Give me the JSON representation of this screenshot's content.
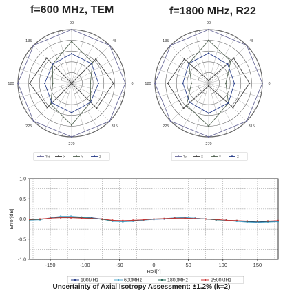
{
  "chart_data": [
    {
      "type": "polar",
      "title": "f=600 MHz, TEM",
      "angle_labels": [
        "0",
        "45",
        "90",
        "135",
        "180",
        "225",
        "270",
        "315"
      ],
      "series": [
        {
          "name": "Tot",
          "color": "#6a6a9a",
          "values": [
            1,
            1,
            1,
            1,
            1,
            1,
            1,
            1
          ]
        },
        {
          "name": "X",
          "color": "#444444",
          "values": [
            0.78,
            0.64,
            0.0,
            0.66,
            0.78,
            0.64,
            0.0,
            0.66
          ]
        },
        {
          "name": "Y",
          "color": "#556655",
          "values": [
            0.35,
            0.55,
            0.78,
            0.5,
            0.35,
            0.55,
            0.78,
            0.5
          ]
        },
        {
          "name": "Z",
          "color": "#2a3f8a",
          "values": [
            0.5,
            0.52,
            0.55,
            0.5,
            0.5,
            0.52,
            0.55,
            0.5
          ]
        }
      ],
      "legend": [
        "Tot",
        "X",
        "Y",
        "Z"
      ]
    },
    {
      "type": "polar",
      "title": "f=1800 MHz, R22",
      "angle_labels": [
        "0",
        "45",
        "90",
        "135",
        "180",
        "225",
        "270",
        "315"
      ],
      "series": [
        {
          "name": "Tot",
          "color": "#6a6a9a",
          "values": [
            1,
            1,
            1,
            1,
            1,
            1,
            1,
            1
          ]
        },
        {
          "name": "X",
          "color": "#444444",
          "values": [
            0.76,
            0.66,
            0.05,
            0.64,
            0.76,
            0.66,
            0.05,
            0.64
          ]
        },
        {
          "name": "Y",
          "color": "#556655",
          "values": [
            0.32,
            0.58,
            0.8,
            0.52,
            0.32,
            0.58,
            0.8,
            0.52
          ]
        },
        {
          "name": "Z",
          "color": "#2a3f8a",
          "values": [
            0.48,
            0.5,
            0.56,
            0.52,
            0.48,
            0.5,
            0.56,
            0.52
          ]
        }
      ],
      "legend": [
        "Tot",
        "X",
        "Y",
        "Z"
      ]
    },
    {
      "type": "line",
      "title": "Uncertainty of Axial Isotropy Assessment: ±1.2% (k=2)",
      "xlabel": "Roll[°]",
      "ylabel": "Error[dB]",
      "xlim": [
        -180,
        180
      ],
      "ylim": [
        -1.0,
        1.0
      ],
      "xticks": [
        "-150",
        "-100",
        "-50",
        "0",
        "50",
        "100",
        "150"
      ],
      "yticks": [
        "1.0",
        "0.5",
        "0.0",
        "-0.5",
        "-1.0"
      ],
      "grid": true,
      "x": [
        -180,
        -165,
        -150,
        -135,
        -120,
        -105,
        -90,
        -75,
        -60,
        -45,
        -30,
        -15,
        0,
        15,
        30,
        45,
        60,
        75,
        90,
        105,
        120,
        135,
        150,
        165,
        180
      ],
      "series": [
        {
          "name": "100MHz",
          "color": "#2a3f8a",
          "values": [
            -0.02,
            -0.01,
            0.02,
            0.05,
            0.05,
            0.04,
            0.03,
            0.0,
            -0.05,
            -0.07,
            -0.05,
            -0.02,
            -0.01,
            0.0,
            0.02,
            0.03,
            0.02,
            0.0,
            -0.02,
            -0.03,
            -0.05,
            -0.07,
            -0.08,
            -0.07,
            -0.06
          ]
        },
        {
          "name": "600MHz",
          "color": "#55aacc",
          "values": [
            -0.03,
            -0.02,
            0.03,
            0.07,
            0.07,
            0.05,
            0.02,
            0.0,
            -0.06,
            -0.07,
            -0.06,
            -0.03,
            -0.01,
            0.01,
            0.03,
            0.04,
            0.02,
            0.0,
            -0.02,
            -0.04,
            -0.06,
            -0.08,
            -0.09,
            -0.08,
            -0.07
          ]
        },
        {
          "name": "1800MHz",
          "color": "#2a6a5a",
          "values": [
            -0.02,
            -0.01,
            0.02,
            0.04,
            0.04,
            0.03,
            0.02,
            -0.01,
            -0.04,
            -0.05,
            -0.04,
            -0.02,
            0.0,
            0.01,
            0.02,
            0.02,
            0.01,
            0.0,
            -0.02,
            -0.03,
            -0.04,
            -0.06,
            -0.06,
            -0.06,
            -0.05
          ]
        },
        {
          "name": "2500MHz",
          "color": "#cc3333",
          "values": [
            -0.01,
            0.0,
            0.02,
            0.03,
            0.03,
            0.02,
            0.01,
            0.0,
            -0.03,
            -0.04,
            -0.03,
            -0.02,
            0.0,
            0.01,
            0.02,
            0.02,
            0.01,
            0.0,
            -0.01,
            -0.03,
            -0.04,
            -0.05,
            -0.05,
            -0.05,
            -0.04
          ]
        }
      ],
      "legend": [
        "100MHz",
        "600MHz",
        "1800MHz",
        "2500MHz"
      ]
    }
  ]
}
